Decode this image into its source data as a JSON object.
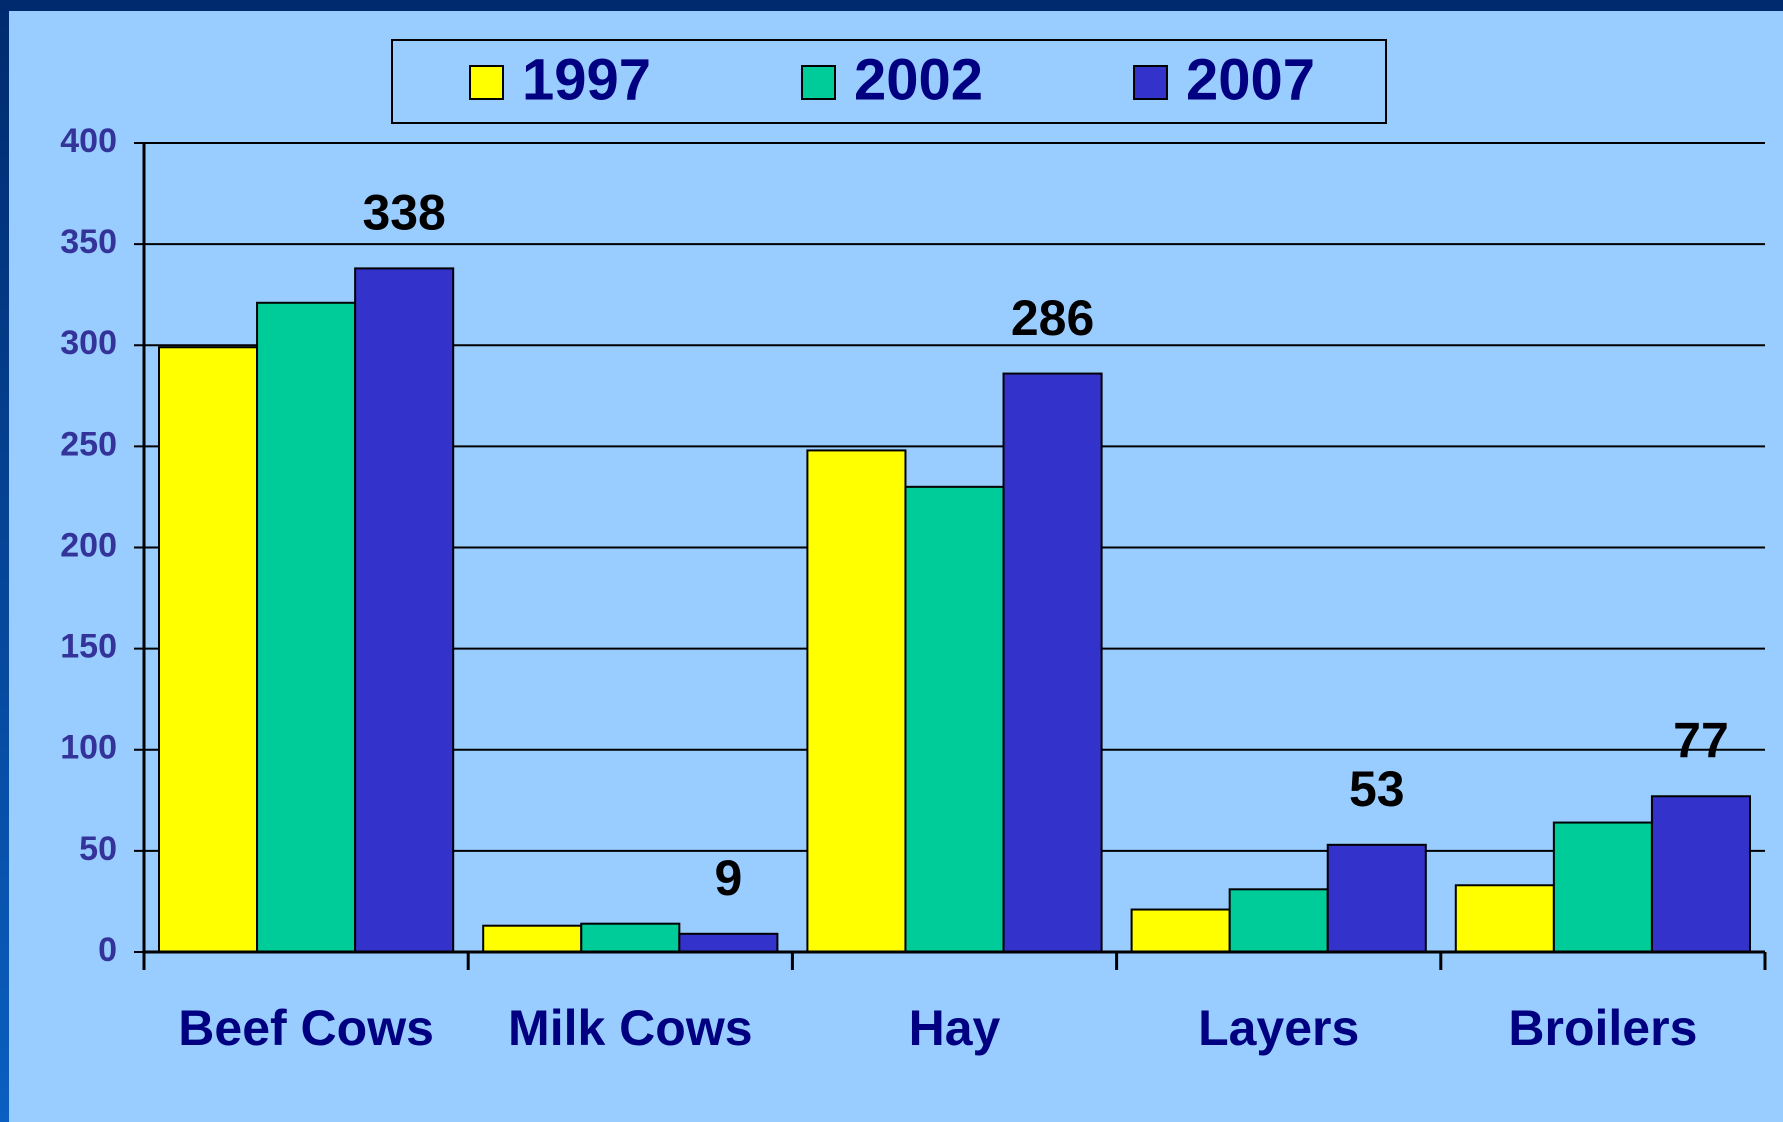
{
  "chart_data": {
    "type": "bar",
    "categories": [
      "Beef Cows",
      "Milk Cows",
      "Hay",
      "Layers",
      "Broilers"
    ],
    "series": [
      {
        "name": "1997",
        "color": "#ffff00",
        "values": [
          299,
          13,
          248,
          21,
          33
        ]
      },
      {
        "name": "2002",
        "color": "#00cc99",
        "values": [
          321,
          14,
          230,
          31,
          64
        ]
      },
      {
        "name": "2007",
        "color": "#3333cc",
        "values": [
          338,
          9,
          286,
          53,
          77
        ],
        "data_labels": true
      }
    ],
    "ylim": [
      0,
      400
    ],
    "yticks": [
      0,
      50,
      100,
      150,
      200,
      250,
      300,
      350,
      400
    ],
    "grid": true,
    "legend": "top"
  }
}
